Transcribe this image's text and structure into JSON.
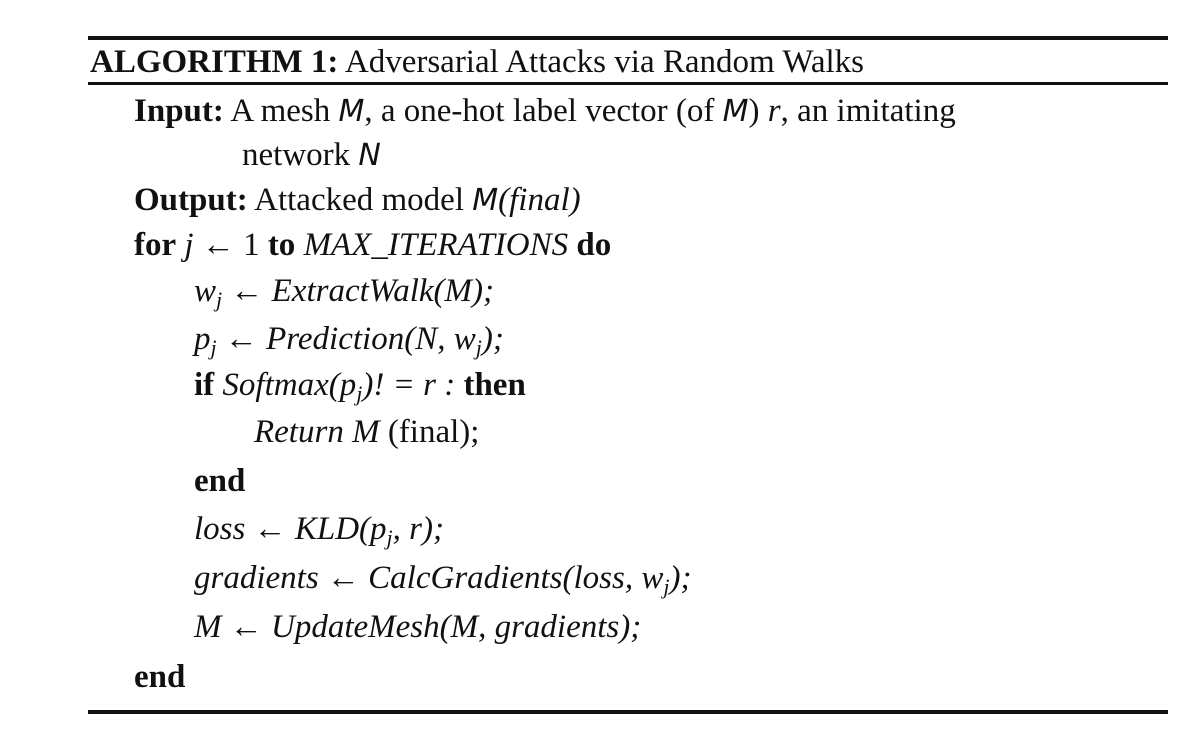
{
  "algorithm": {
    "heading": "ALGORITHM 1:",
    "title": "Adversarial Attacks via Random Walks",
    "input": {
      "keyword": "Input:",
      "t1": "A mesh",
      "sym1": "M",
      "t2": ", a one-hot label vector (of",
      "sym2": "M",
      "t3": ")",
      "r": "r",
      "t4": ", an imitating",
      "cont": "network",
      "sym3": "N"
    },
    "output": {
      "keyword": "Output:",
      "t1": "Attacked model",
      "sym": "M",
      "expr": "(final)"
    },
    "for_line": {
      "kw_for": "for",
      "j": "j",
      "arrow": " ← 1 ",
      "kw_to": "to",
      "max": "MAX_ITERATIONS",
      "kw_do": "do"
    },
    "body": [
      {
        "lhs": "w",
        "sub": "j",
        "rhs": " ← ExtractWalk(M);"
      },
      {
        "lhs": "p",
        "sub": "j",
        "rhs": " ← Prediction(N, w",
        "sub2": "j",
        "end": ");"
      }
    ],
    "if_line": {
      "kw_if": "if",
      "expr": "Softmax(p",
      "sub": "j",
      "expr2": ")! = r :",
      "kw_then": "then"
    },
    "return_line": {
      "expr": "Return M",
      "tail": "(final);"
    },
    "end1": "end",
    "loss_line": {
      "expr": "loss ← KLD(p",
      "sub": "j",
      "end": ", r);"
    },
    "grad_line": {
      "expr": "gradients ← CalcGradients(loss, w",
      "sub": "j",
      "end": ");"
    },
    "update_line": {
      "expr": "M ← UpdateMesh(M, gradients);"
    },
    "end2": "end"
  }
}
